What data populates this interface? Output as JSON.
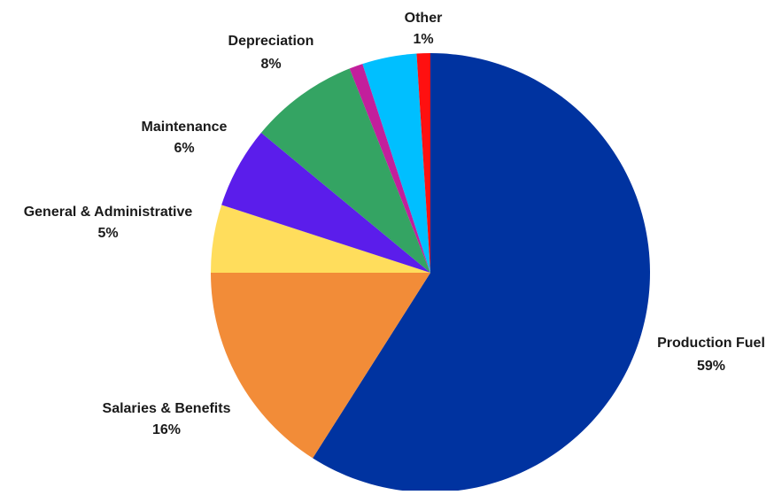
{
  "chart_data": {
    "type": "pie",
    "title": "",
    "start_angle": "12 o'clock",
    "direction": "clockwise",
    "slices": [
      {
        "name": "Production Fuel",
        "value": 59,
        "label": "Production Fuel",
        "value_label": "59%",
        "color": "#0033A0"
      },
      {
        "name": "Salaries & Benefits",
        "value": 16,
        "label": "Salaries & Benefits",
        "value_label": "16%",
        "color": "#F28C38"
      },
      {
        "name": "General & Administrative",
        "value": 5,
        "label": "General & Administrative",
        "value_label": "5%",
        "color": "#FFDD5C"
      },
      {
        "name": "Maintenance",
        "value": 6,
        "label": "Maintenance",
        "value_label": "6%",
        "color": "#5B1DEB"
      },
      {
        "name": "Depreciation",
        "value": 8,
        "label": "Depreciation",
        "value_label": "8%",
        "color": "#34A463"
      },
      {
        "name": "Unlabeled slice (magenta)",
        "value": 1,
        "label": "",
        "value_label": "",
        "color": "#C21F9C"
      },
      {
        "name": "Unlabeled slice (cyan)",
        "value": 4,
        "label": "",
        "value_label": "",
        "color": "#00BFFF"
      },
      {
        "name": "Other",
        "value": 1,
        "label": "Other",
        "value_label": "1%",
        "color": "#FF1010"
      }
    ]
  }
}
